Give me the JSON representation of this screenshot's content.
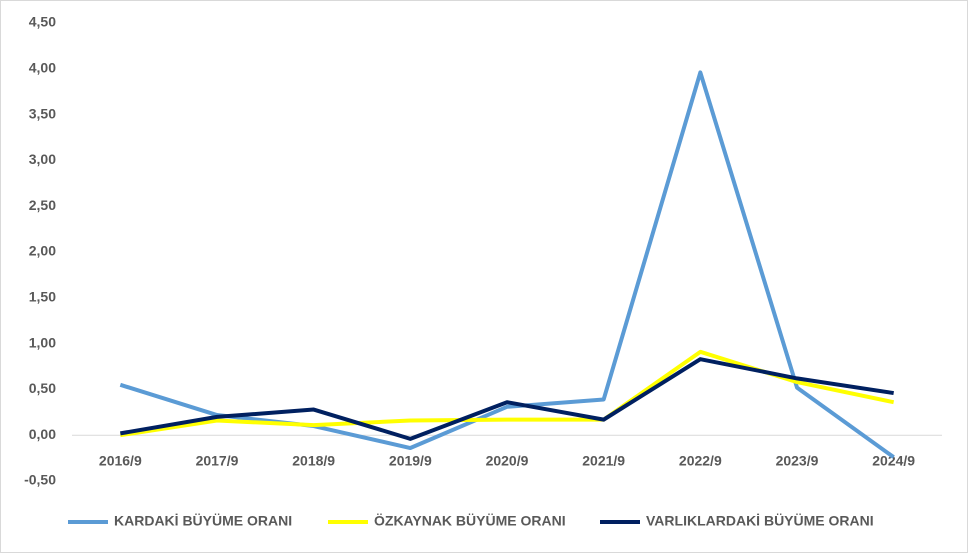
{
  "chart_data": {
    "type": "line",
    "categories": [
      "2016/9",
      "2017/9",
      "2018/9",
      "2019/9",
      "2020/9",
      "2021/9",
      "2022/9",
      "2023/9",
      "2024/9"
    ],
    "series": [
      {
        "name": "KARDAKİ BÜYÜME ORANI",
        "color": "#5b9bd5",
        "values": [
          0.55,
          0.22,
          0.1,
          -0.14,
          0.31,
          0.39,
          3.96,
          0.52,
          -0.24
        ]
      },
      {
        "name": "ÖZKAYNAK BÜYÜME ORANI",
        "color": "#ffff00",
        "values": [
          0.0,
          0.16,
          0.11,
          0.16,
          0.17,
          0.17,
          0.91,
          0.58,
          0.36
        ]
      },
      {
        "name": "VARLIKLARDAKİ BÜYÜME ORANI",
        "color": "#002060",
        "values": [
          0.02,
          0.2,
          0.28,
          -0.04,
          0.36,
          0.17,
          0.83,
          0.62,
          0.46
        ]
      }
    ],
    "ylim": [
      -0.5,
      4.5
    ],
    "yticks": [
      {
        "value": -0.5,
        "label": "-0,50"
      },
      {
        "value": 0,
        "label": "0,00"
      },
      {
        "value": 0.5,
        "label": "0,50"
      },
      {
        "value": 1,
        "label": "1,00"
      },
      {
        "value": 1.5,
        "label": "1,50"
      },
      {
        "value": 2,
        "label": "2,00"
      },
      {
        "value": 2.5,
        "label": "2,50"
      },
      {
        "value": 3,
        "label": "3,00"
      },
      {
        "value": 3.5,
        "label": "3,50"
      },
      {
        "value": 4,
        "label": "4,00"
      },
      {
        "value": 4.5,
        "label": "4,50"
      }
    ],
    "grid": false,
    "legend": "bottom"
  }
}
